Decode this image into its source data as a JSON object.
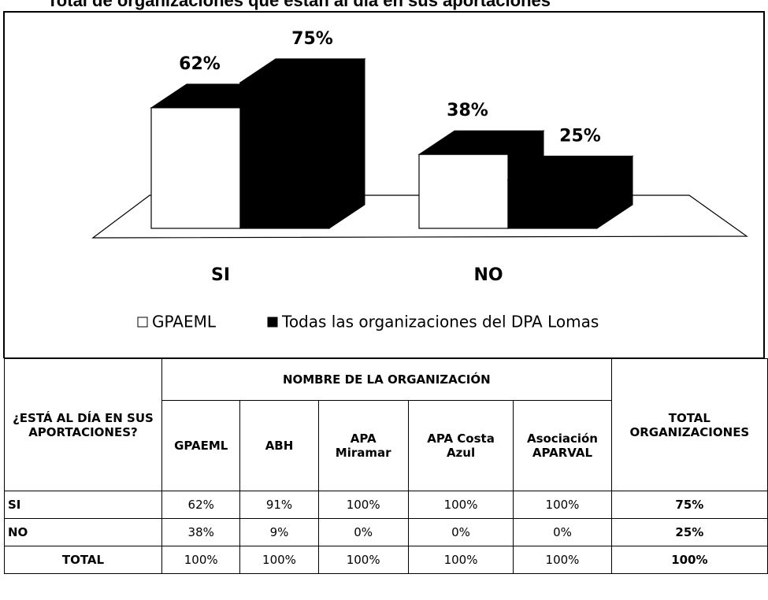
{
  "title": "Total de organizaciones que están al día en sus aportaciones",
  "chart_data": {
    "type": "bar3d",
    "categories": [
      "SI",
      "NO"
    ],
    "series": [
      {
        "name": "GPAEML",
        "color": "#ffffff",
        "values": [
          62,
          38
        ],
        "value_labels": [
          "62%",
          "38%"
        ]
      },
      {
        "name": "Todas las organizaciones del DPA Lomas",
        "color": "#000000",
        "values": [
          75,
          25
        ],
        "value_labels": [
          "75%",
          "25%"
        ]
      }
    ]
  },
  "table": {
    "question": "¿ESTÁ AL DÍA EN SUS APORTACIONES?",
    "group": "NOMBRE DE LA ORGANIZACIÓN",
    "columns": [
      "GPAEML",
      "ABH",
      "APA Miramar",
      "APA Costa Azul",
      "Asociación APARVAL"
    ],
    "total": "TOTAL ORGANIZACIONES",
    "rows": [
      [
        "SI",
        "62%",
        "91%",
        "100%",
        "100%",
        "100%",
        "75%"
      ],
      [
        "NO",
        "38%",
        "9%",
        "0%",
        "0%",
        "0%",
        "25%"
      ],
      [
        "TOTAL",
        "100%",
        "100%",
        "100%",
        "100%",
        "100%",
        "100%"
      ]
    ]
  }
}
